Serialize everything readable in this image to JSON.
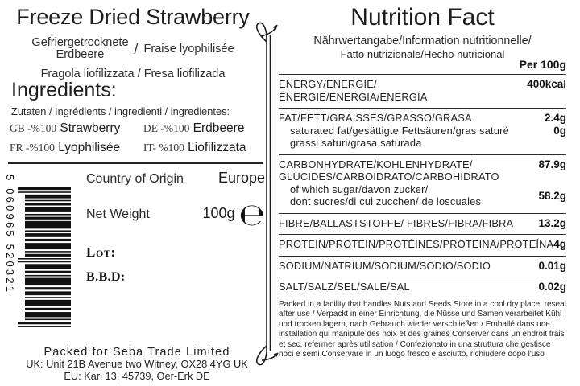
{
  "ink": "#1d1d1b",
  "left": {
    "title": "Freeze Dried Strawberry",
    "subtitle_de_line1": "Gefriergetrocknete",
    "subtitle_de_line2": "Erdbeere",
    "subtitle_separator": "/",
    "subtitle_fr": "Fraise lyophilisée",
    "subtitle_it_es": "Fragola liofilizzata / Fresa liofilizada",
    "ingredients_heading": "Ingredients:",
    "ingredients_subheading": "Zutaten / Ingrédients / ingredienti / ingredientes:",
    "ingredients": [
      {
        "code": "GB -%100",
        "name": "Strawberry"
      },
      {
        "code": "DE -%100",
        "name": "Erdbeere"
      },
      {
        "code": "FR -%100",
        "name": "Lyophilisée"
      },
      {
        "code": "IT- %100",
        "name": "Liofilizzata"
      }
    ],
    "origin_label": "Country of Origin",
    "origin_value": "Europe",
    "net_weight_label": "Net Weight",
    "net_weight_value": "100g",
    "estimated_sign": "℮",
    "lot_label": "Lot:",
    "bbd_label": "B.B.D:",
    "barcode_number": "5 060965 520321",
    "packed_for": "Packed for Seba Trade Limited",
    "address_uk": "UK: Unit 21B Avenue two Witney, OX28 4YG UK",
    "address_eu": "EU: Karl 13, 45739, Oer-Erk DE"
  },
  "right": {
    "title": "Nutrition Fact",
    "subtitle_line1": "Nährwertangabe/Information nutritionnelle/",
    "subtitle_line2": "Fatto nutrizionale/Hecho nutricional",
    "per_label": "Per 100g",
    "rows": [
      {
        "segments": [
          {
            "lines": [
              "ENERGY/ENERGIE/ ÉNERGIE/ENERGIA/ENERGÍA"
            ],
            "value": "400kcal"
          }
        ]
      },
      {
        "segments": [
          {
            "lines": [
              "FAT/FETT/GRAISSES/GRASSO/GRASA"
            ],
            "value": "2.4g"
          },
          {
            "lines": [
              "saturated fat/gesättigte Fettsäuren/gras saturé",
              "grassi saturi/grasa saturada"
            ],
            "value": "0g",
            "indent": true
          }
        ]
      },
      {
        "segments": [
          {
            "lines": [
              "CARBONHYDRATE/KOHLENHYDRATE/",
              "GLUCIDES/CARBOIDRATO/CARBOHIDRATO"
            ],
            "value": "87.9g"
          },
          {
            "lines": [
              "of which sugar/davon zucker/",
              "dont sucres/di cui zucchen/ de loscuales"
            ],
            "value": "58.2g",
            "indent": true,
            "valign": "center"
          }
        ]
      },
      {
        "segments": [
          {
            "lines": [
              "FIBRE/BALLASTSTOFFE/ FIBRES/FIBRA/FIBRA"
            ],
            "value": "13.2g"
          }
        ]
      },
      {
        "segments": [
          {
            "lines": [
              "PROTEIN/PROTEIN/PROTÉINES/PROTEINA/PROTEÍNA"
            ],
            "value": "4g"
          }
        ]
      },
      {
        "segments": [
          {
            "lines": [
              "SODIUM/NATRIUM/SODIUM/SODIO/SODIO"
            ],
            "value": "0.01g"
          }
        ]
      },
      {
        "segments": [
          {
            "lines": [
              "SALT/SALZ/SEL/SALE/SAL"
            ],
            "value": "0.02g"
          }
        ]
      }
    ],
    "storage_note": "Packed in a facility that handles Nuts and Seeds Store in a cool dry place, reseal after use / Verpackt in einer Einrichtung, die Nüsse und Samen verarbeitet Kühl und trocken lagern, nach Gebrauch wieder verschließen / Emballé dans une installation qui manipule des noix et des graines Conserver dans un endroit frais et sec, refermer après utilisation / Confezionato in una struttura che gestisce noci e semi Conservare in un luogo fresco e asciutto, richiudere dopo l'uso"
  }
}
